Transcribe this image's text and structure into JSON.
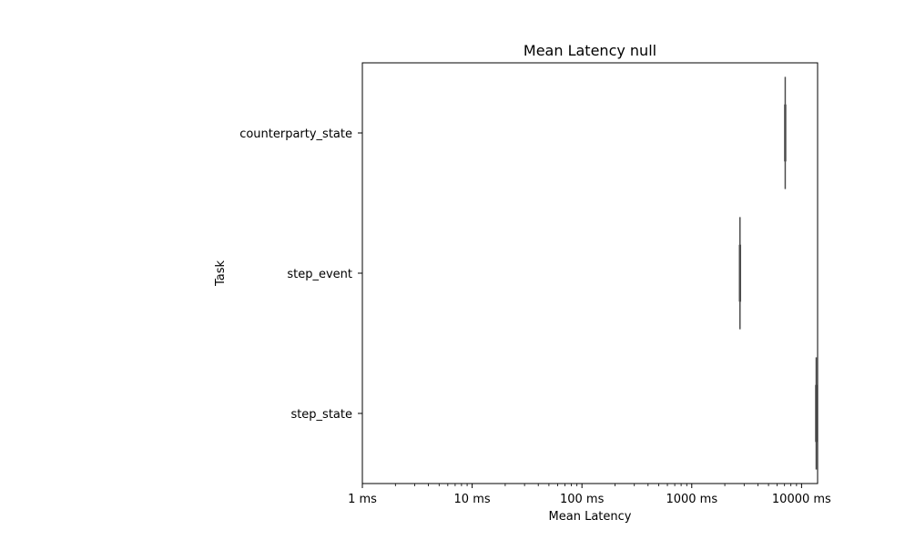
{
  "chart_data": {
    "type": "boxplot",
    "orientation": "horizontal",
    "title": "Mean Latency null",
    "xlabel": "Mean Latency",
    "ylabel": "Task",
    "x_scale": "log",
    "xlim": [
      1,
      14000
    ],
    "x_ticks": [
      {
        "value": 1,
        "label": "1 ms"
      },
      {
        "value": 10,
        "label": "10 ms"
      },
      {
        "value": 100,
        "label": "100 ms"
      },
      {
        "value": 1000,
        "label": "1000 ms"
      },
      {
        "value": 10000,
        "label": "10000 ms"
      }
    ],
    "categories": [
      "counterparty_state",
      "step_event",
      "step_state"
    ],
    "series": [
      {
        "values": [
          {
            "category": "counterparty_state",
            "min": 7100,
            "q1": 7100,
            "median": 7100,
            "q3": 7100,
            "max": 7100
          },
          {
            "category": "step_event",
            "min": 2750,
            "q1": 2750,
            "median": 2750,
            "q3": 2750,
            "max": 2750
          },
          {
            "category": "step_state",
            "min": 13600,
            "q1": 13600,
            "median": 13600,
            "q3": 13600,
            "max": 13600
          }
        ]
      }
    ],
    "grid": false,
    "colors": {
      "box": "#4c4c4c",
      "axis": "#000000"
    }
  }
}
